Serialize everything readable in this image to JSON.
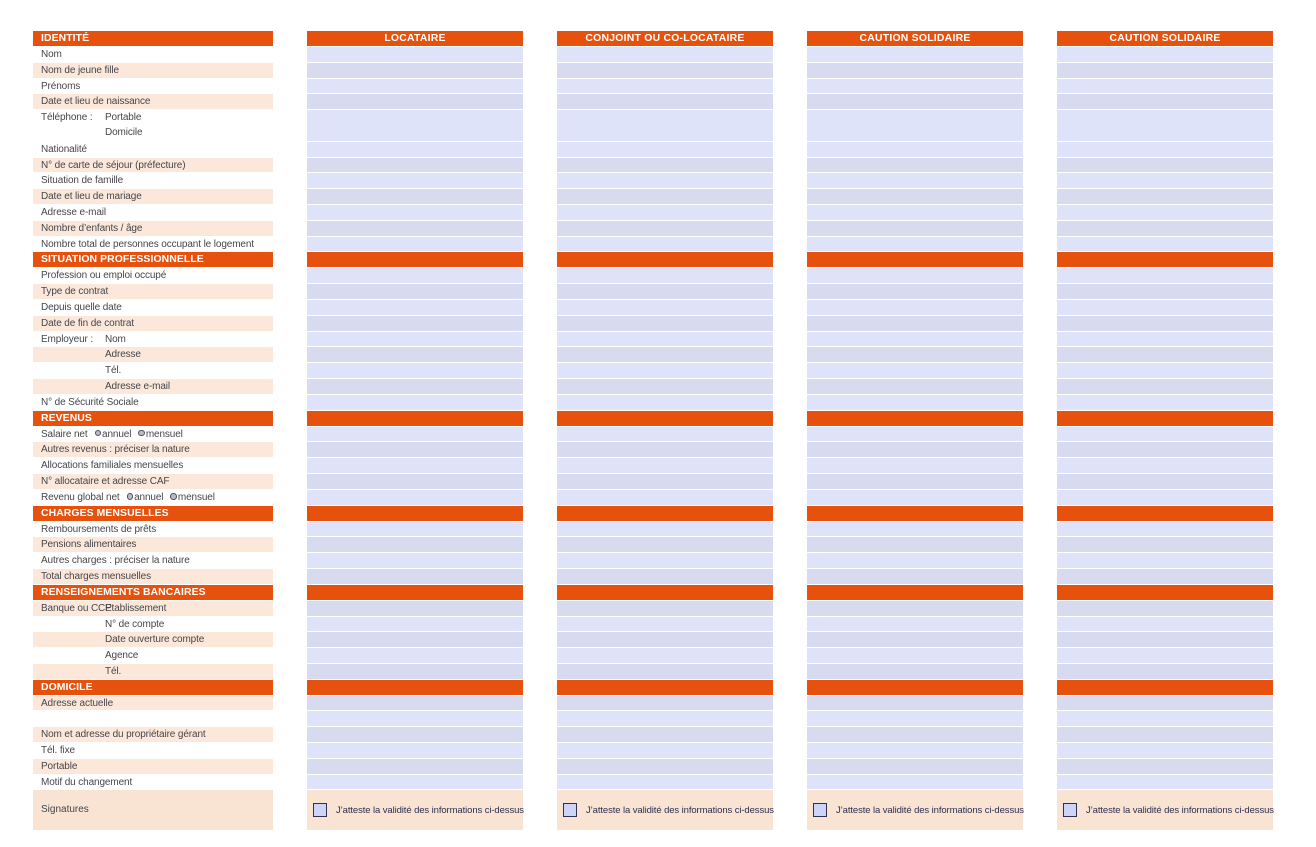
{
  "colors": {
    "orange": "#e6520d",
    "peach": "#fbe8da",
    "peach-sig": "#f9e3d3",
    "lav-light": "#dfe3f9",
    "lav-dark": "#d8dbef",
    "label-text": "#46464c",
    "navy": "#2f2f4f",
    "cb-fill": "#ccd4f7"
  },
  "columns": [
    "LOCATAIRE",
    "CONJOINT OU CO-LOCATAIRE",
    "CAUTION SOLIDAIRE",
    "CAUTION SOLIDAIRE"
  ],
  "sections": [
    {
      "title": "IDENTITÉ",
      "rows": [
        {
          "label": "Nom",
          "shade": "light"
        },
        {
          "label": "Nom de jeune fille",
          "shade": "dark"
        },
        {
          "label": "Prénoms",
          "shade": "light"
        },
        {
          "label": "Date et lieu de naissance",
          "shade": "dark"
        },
        {
          "label": "Téléphone :",
          "sub": "Portable",
          "sub2": "Domicile",
          "double": true,
          "shade": "light"
        },
        {
          "label": "Nationalité",
          "shade": "light"
        },
        {
          "label": "N° de carte de séjour (préfecture)",
          "shade": "dark"
        },
        {
          "label": "Situation de famille",
          "shade": "light"
        },
        {
          "label": "Date et lieu de mariage",
          "shade": "dark"
        },
        {
          "label": "Adresse e-mail",
          "shade": "light"
        },
        {
          "label": "Nombre d’enfants / âge",
          "shade": "dark"
        },
        {
          "label": "Nombre total de personnes occupant le logement",
          "shade": "light"
        }
      ]
    },
    {
      "title": "SITUATION PROFESSIONNELLE",
      "rows": [
        {
          "label": "Profession ou emploi occupé",
          "shade": "light"
        },
        {
          "label": "Type de contrat",
          "shade": "dark"
        },
        {
          "label": "Depuis quelle date",
          "shade": "light"
        },
        {
          "label": "Date de fin de contrat",
          "shade": "dark"
        },
        {
          "label": "Employeur :",
          "sub": "Nom",
          "shade": "light"
        },
        {
          "label": "",
          "sub": "Adresse",
          "shade": "dark"
        },
        {
          "label": "",
          "sub": "Tél.",
          "shade": "light"
        },
        {
          "label": "",
          "sub": "Adresse e-mail",
          "shade": "dark"
        },
        {
          "label": "N° de Sécurité Sociale",
          "shade": "light"
        }
      ]
    },
    {
      "title": "REVENUS",
      "rows": [
        {
          "label": "Salaire net",
          "radios": [
            "annuel",
            "mensuel"
          ],
          "shade": "light"
        },
        {
          "label": "Autres revenus : préciser la nature",
          "shade": "dark"
        },
        {
          "label": "Allocations familiales mensuelles",
          "shade": "light"
        },
        {
          "label": "N° allocataire et adresse CAF",
          "shade": "dark"
        },
        {
          "label": "Revenu global net",
          "radios": [
            "annuel",
            "mensuel"
          ],
          "shade": "light"
        }
      ]
    },
    {
      "title": "CHARGES MENSUELLES",
      "rows": [
        {
          "label": "Remboursements de prêts",
          "shade": "light"
        },
        {
          "label": "Pensions alimentaires",
          "shade": "dark"
        },
        {
          "label": "Autres charges : préciser la nature",
          "shade": "light"
        },
        {
          "label": "Total charges mensuelles",
          "shade": "dark"
        }
      ]
    },
    {
      "title": "RENSEIGNEMENTS BANCAIRES",
      "rows": [
        {
          "label": "Banque ou CCP",
          "sub": "Etablissement",
          "shade": "dark"
        },
        {
          "label": "",
          "sub": "N° de compte",
          "shade": "light"
        },
        {
          "label": "",
          "sub": "Date ouverture compte",
          "shade": "dark"
        },
        {
          "label": "",
          "sub": "Agence",
          "shade": "light"
        },
        {
          "label": "",
          "sub": "Tél.",
          "shade": "dark"
        }
      ]
    },
    {
      "title": "DOMICILE",
      "rows": [
        {
          "label": "Adresse actuelle",
          "shade": "dark"
        },
        {
          "label": "",
          "shade": "light"
        },
        {
          "label": "Nom et adresse du propriétaire gérant",
          "shade": "dark"
        },
        {
          "label": "Tél. fixe",
          "shade": "light"
        },
        {
          "label": "Portable",
          "shade": "dark"
        },
        {
          "label": "Motif du changement",
          "shade": "light"
        }
      ]
    }
  ],
  "signatures": {
    "label": "Signatures",
    "checkbox_label": "J’atteste la validité des informations ci-dessus"
  }
}
